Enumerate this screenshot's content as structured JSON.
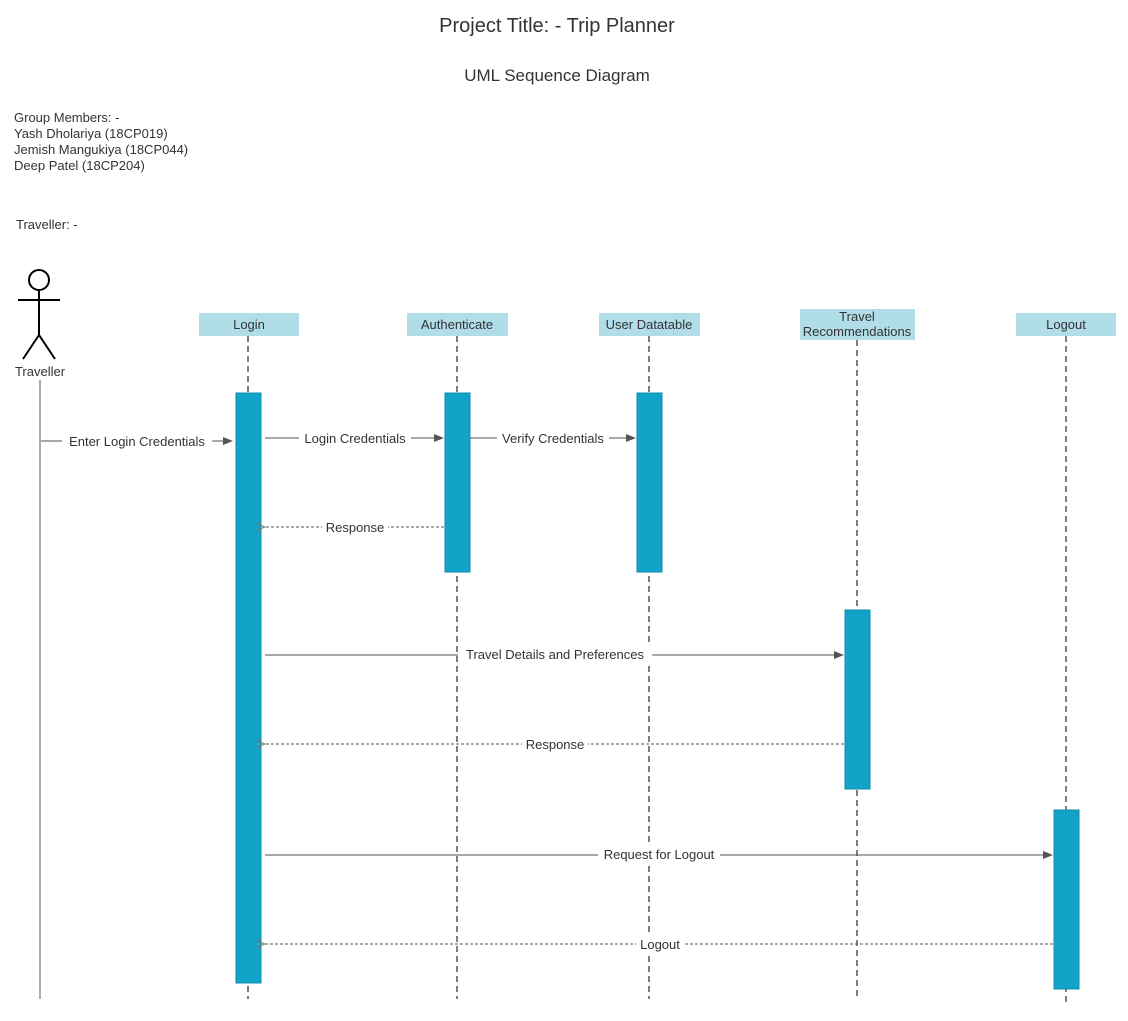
{
  "title": "Project Title: - Trip Planner",
  "subtitle": "UML Sequence Diagram",
  "group": {
    "heading": "Group Members: -",
    "members": [
      "Yash Dholariya (18CP019)",
      "Jemish Mangukiya (18CP044)",
      "Deep Patel (18CP204)"
    ]
  },
  "traveller_note": "Traveller: -",
  "actor": {
    "name": "Traveller"
  },
  "participants": [
    {
      "id": "login",
      "label": [
        "Login"
      ]
    },
    {
      "id": "authenticate",
      "label": [
        "Authenticate"
      ]
    },
    {
      "id": "user-datatable",
      "label": [
        "User Datatable"
      ]
    },
    {
      "id": "travel-recommendations",
      "label": [
        "Travel",
        "Recommendations"
      ]
    },
    {
      "id": "logout",
      "label": [
        "Logout"
      ]
    }
  ],
  "messages": [
    {
      "from": "traveller",
      "to": "login",
      "label": "Enter Login Credentials",
      "kind": "sync"
    },
    {
      "from": "login",
      "to": "authenticate",
      "label": "Login Credentials",
      "kind": "sync"
    },
    {
      "from": "authenticate",
      "to": "user-datatable",
      "label": "Verify Credentials",
      "kind": "sync"
    },
    {
      "from": "authenticate",
      "to": "login",
      "label": "Response",
      "kind": "return"
    },
    {
      "from": "login",
      "to": "travel-recommendations",
      "label": "Travel Details and Preferences",
      "kind": "sync"
    },
    {
      "from": "travel-recommendations",
      "to": "login",
      "label": "Response",
      "kind": "return"
    },
    {
      "from": "login",
      "to": "logout",
      "label": "Request for Logout",
      "kind": "sync"
    },
    {
      "from": "logout",
      "to": "login",
      "label": "Logout",
      "kind": "return"
    }
  ],
  "colors": {
    "participant_fill": "#b1dde8",
    "activation_fill": "#12a4c8",
    "line": "#555555",
    "text": "#333333"
  }
}
